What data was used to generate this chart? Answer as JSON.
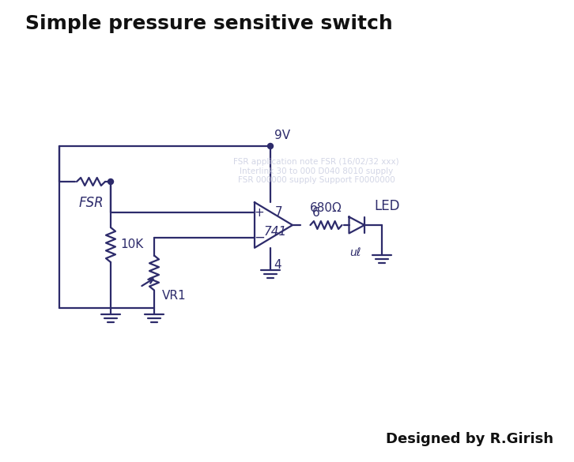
{
  "title": "Simple pressure sensitive switch",
  "credit": "Designed by R.Girish",
  "bg_color": "#ffffff",
  "ink_color": "#2d2b6b",
  "title_fontsize": 18,
  "credit_fontsize": 13,
  "labels": {
    "9V": "9V",
    "FSR": "FSR",
    "10K": "10K",
    "VR1": "VR1",
    "741": "741",
    "pin7": "7",
    "pin4": "4",
    "pin6": "6",
    "680R": "680Ω",
    "LED": "LED"
  },
  "watermark_color": "#c8cce0",
  "figsize": [
    7.26,
    5.85
  ],
  "dpi": 100
}
